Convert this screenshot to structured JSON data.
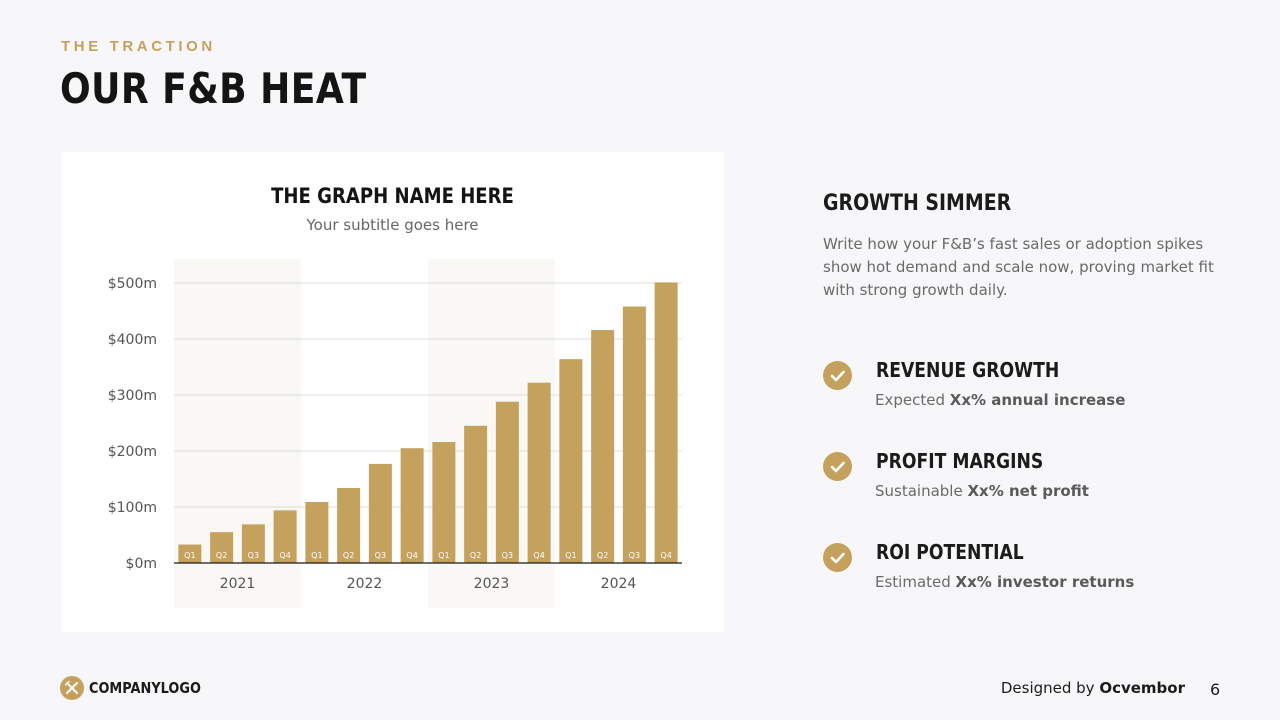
{
  "slide": {
    "eyebrow": "THE TRACTION",
    "title": "OUR F&B HEAT",
    "page_number": "6"
  },
  "chart_data": {
    "type": "bar",
    "title": "THE GRAPH NAME HERE",
    "subtitle": "Your subtitle goes here",
    "ylim": [
      0,
      500
    ],
    "yticks": [
      "$0m",
      "$100m",
      "$200m",
      "$300m",
      "$400m",
      "$500m"
    ],
    "groups": [
      "2021",
      "2022",
      "2023",
      "2024"
    ],
    "categories": [
      "Q1",
      "Q2",
      "Q3",
      "Q4",
      "Q1",
      "Q2",
      "Q3",
      "Q4",
      "Q1",
      "Q2",
      "Q3",
      "Q4",
      "Q1",
      "Q2",
      "Q3",
      "Q4"
    ],
    "values": [
      33,
      55,
      69,
      94,
      109,
      134,
      177,
      205,
      216,
      245,
      288,
      322,
      364,
      416,
      458,
      501
    ],
    "grid": true,
    "bar_color": "#c5a15e",
    "band_color": "#f9f8f5"
  },
  "side": {
    "heading": "GROWTH SIMMER",
    "body": "Write how your F&B’s fast sales or adoption spikes show hot demand and scale now, proving market fit with strong growth daily.",
    "features": [
      {
        "title": "REVENUE GROWTH",
        "desc_prefix": "Expected ",
        "desc_bold": "Xx% annual increase",
        "icon": "check-icon"
      },
      {
        "title": "PROFIT MARGINS",
        "desc_prefix": "Sustainable ",
        "desc_bold": "Xx% net profit",
        "icon": "check-icon"
      },
      {
        "title": "ROI POTENTIAL",
        "desc_prefix": "Estimated ",
        "desc_bold": "Xx% investor returns",
        "icon": "check-icon"
      }
    ]
  },
  "footer": {
    "logo_text": "COMPANYLOGO",
    "logo_icon": "cross-utensils-icon",
    "credit_prefix": "Designed by ",
    "credit_name": "Ocvembor"
  },
  "colors": {
    "accent": "#c5a15e",
    "background": "#f7f7f9",
    "card": "#ffffff"
  }
}
